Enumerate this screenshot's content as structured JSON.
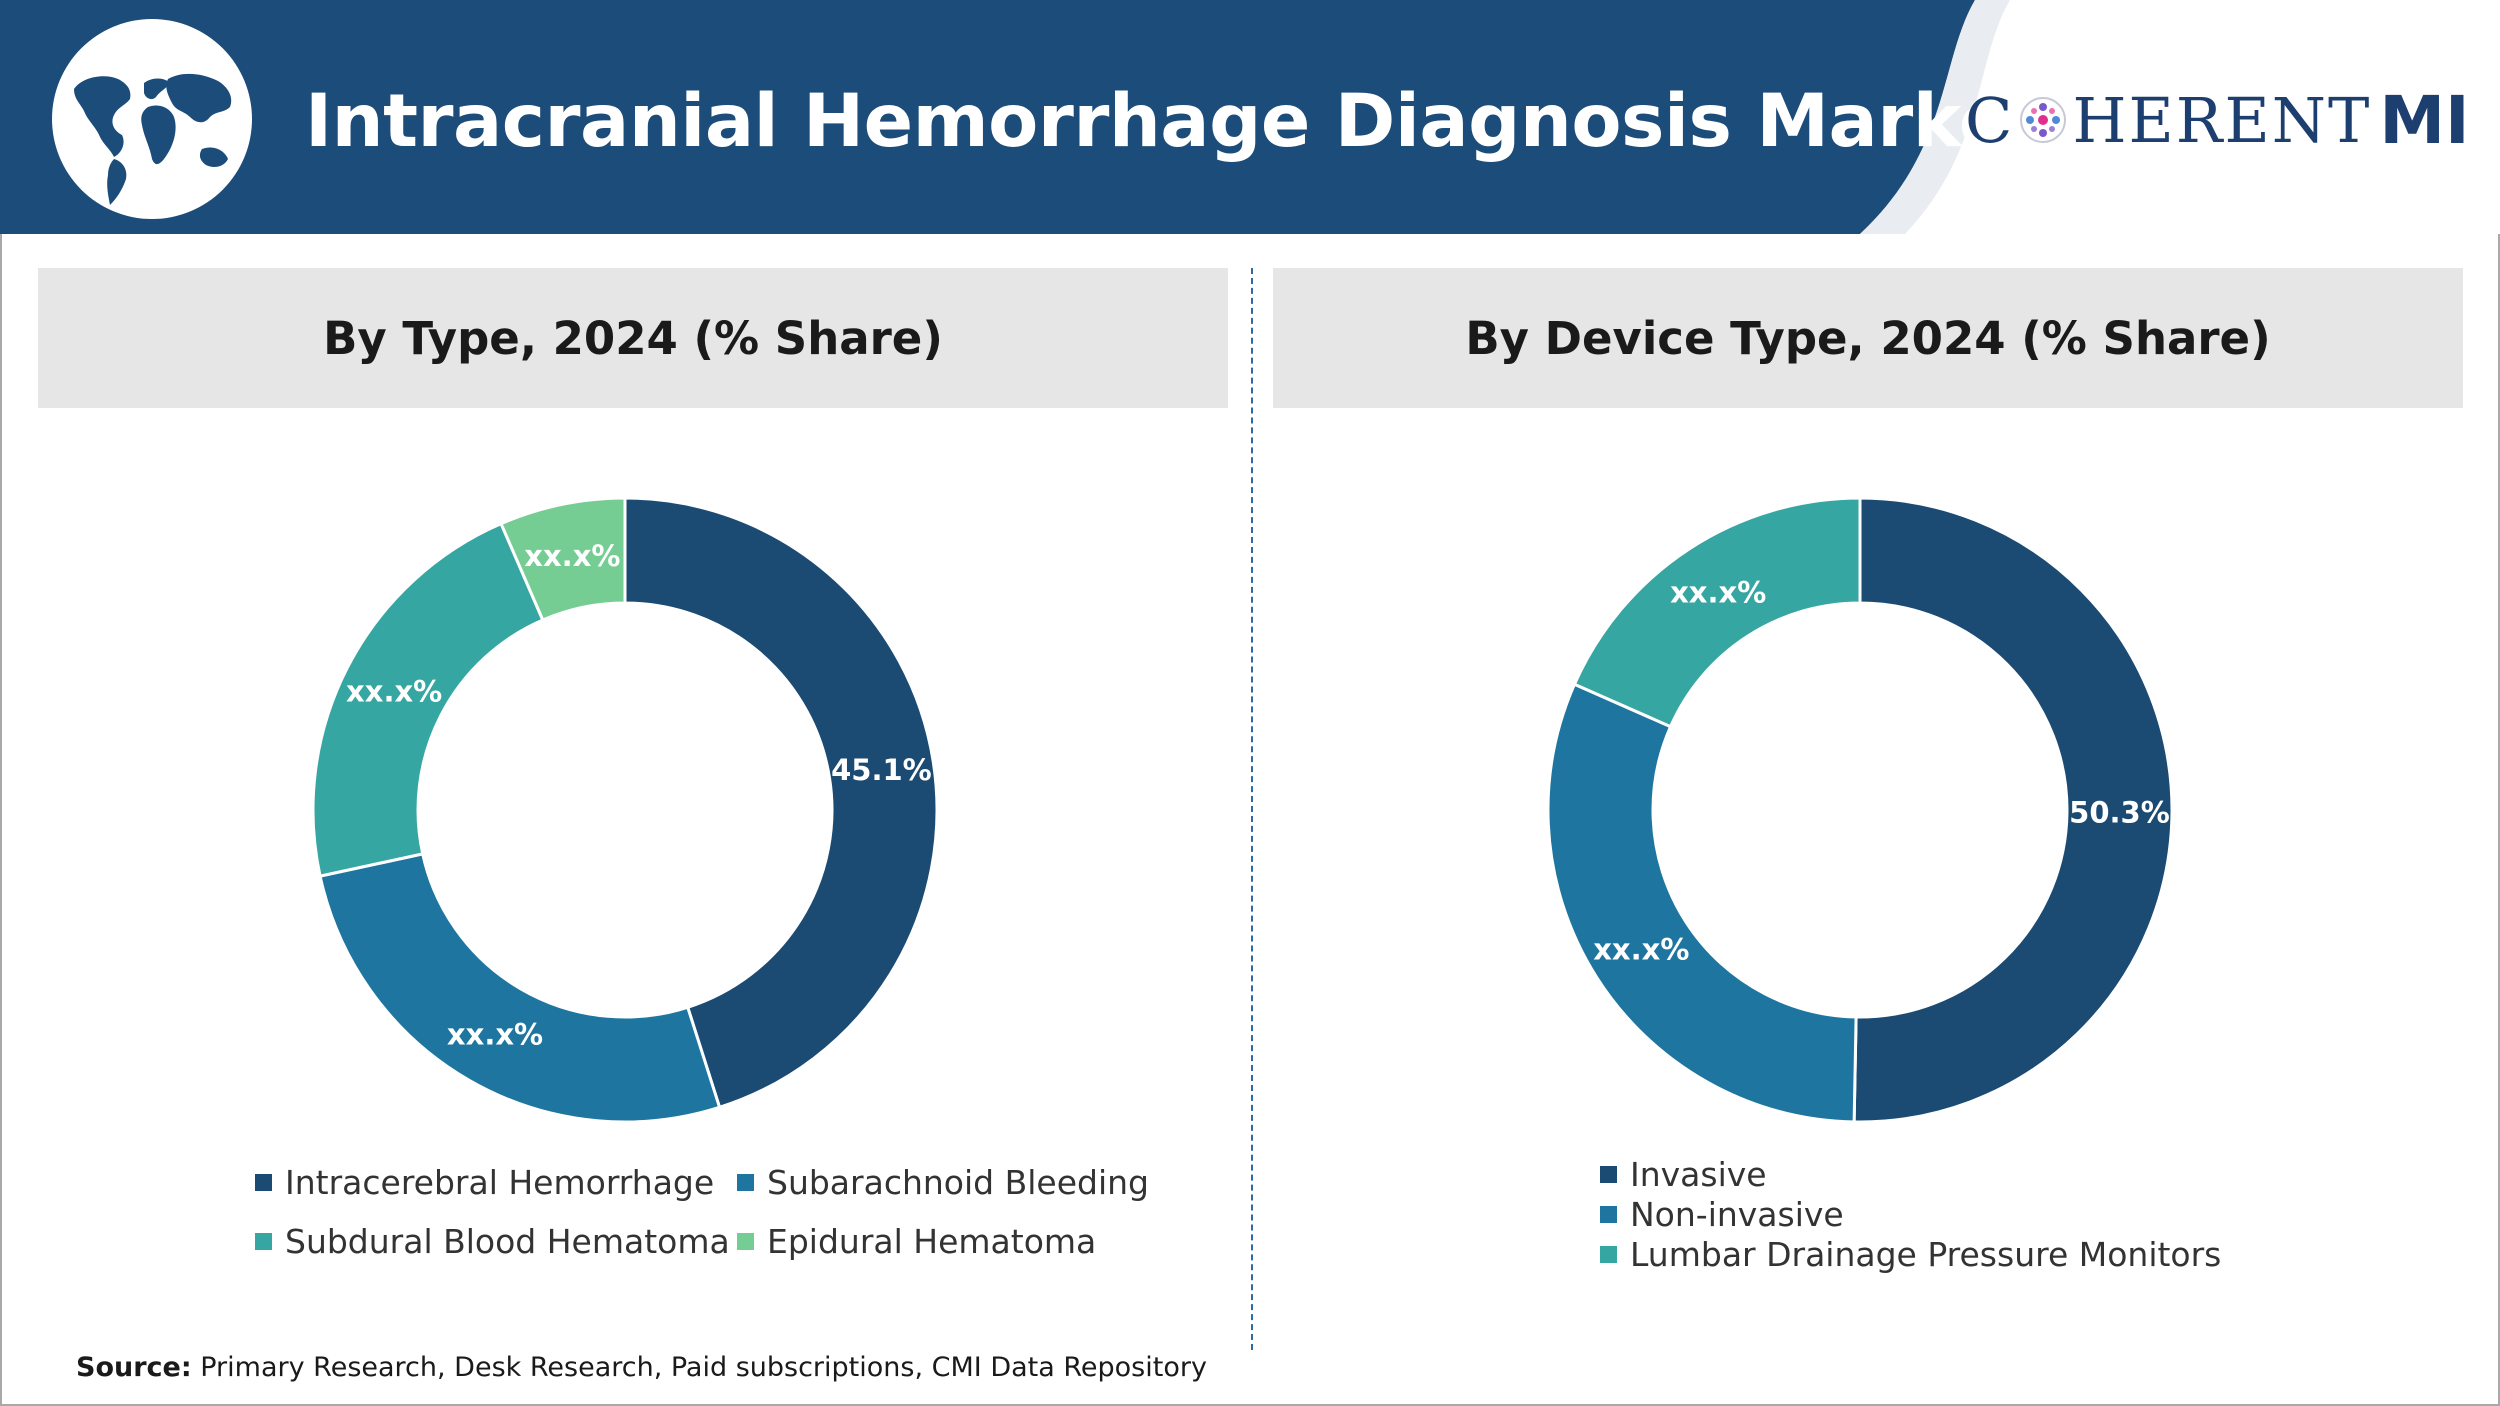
{
  "header": {
    "title": "Intracranial Hemorrhage Diagnosis Market",
    "brand_text_left": "C",
    "brand_text_right": "HERENT",
    "brand_suffix": "MI",
    "globe_icon": "world-map-icon"
  },
  "colors": {
    "header_blue": "#1c4c7a",
    "navy": "#1b4a73",
    "blue": "#1e76a0",
    "teal": "#35a6a1",
    "green": "#76cd93",
    "panel_gray": "#e6e6e6"
  },
  "chart_data": [
    {
      "type": "pie",
      "title": "By Type, 2024 (% Share)",
      "donut": true,
      "legend_position": "bottom",
      "slices": [
        {
          "name": "Intracerebral Hemorrhage",
          "value": 45.1,
          "label": "45.1%",
          "color": "#1b4a73"
        },
        {
          "name": "Subarachnoid Bleeding",
          "value": 26.5,
          "label": "xx.x%",
          "color": "#1e76a0"
        },
        {
          "name": "Subdural Blood Hematoma",
          "value": 21.9,
          "label": "xx.x%",
          "color": "#35a6a1"
        },
        {
          "name": "Epidural Hematoma",
          "value": 6.5,
          "label": "xx.x%",
          "color": "#76cd93"
        }
      ]
    },
    {
      "type": "pie",
      "title": "By Device Type, 2024 (% Share)",
      "donut": true,
      "legend_position": "bottom",
      "slices": [
        {
          "name": "Invasive",
          "value": 50.3,
          "label": "50.3%",
          "color": "#1b4a73"
        },
        {
          "name": "Non-invasive",
          "value": 31.3,
          "label": "xx.x%",
          "color": "#1e76a0"
        },
        {
          "name": "Lumbar Drainage Pressure Monitors",
          "value": 18.4,
          "label": "xx.x%",
          "color": "#35a6a1"
        }
      ]
    }
  ],
  "footer": {
    "source_label": "Source:",
    "source_text": " Primary Research, Desk Research, Paid subscriptions, CMI Data Repository"
  }
}
